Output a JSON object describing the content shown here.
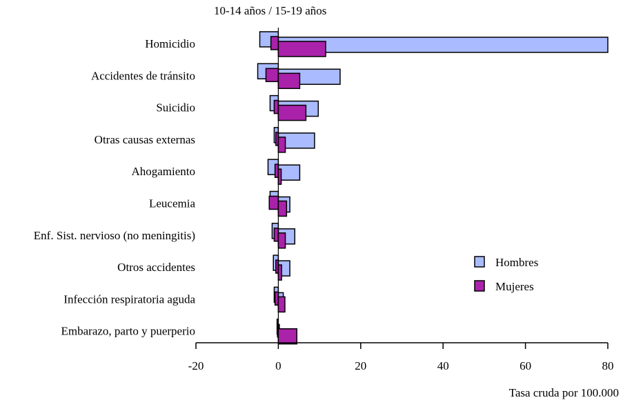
{
  "chart_data": {
    "type": "bar",
    "orientation": "horizontal",
    "title": "10-14 años / 15-19 años",
    "xlabel": "Tasa cruda por 100.000",
    "ylabel": "",
    "xlim": [
      -20,
      80
    ],
    "xticks": [
      -20,
      0,
      20,
      40,
      60,
      80
    ],
    "grid": false,
    "legend": "right",
    "note_negative_side": "10-14 años",
    "note_positive_side": "15-19 años",
    "categories": [
      "Homicidio",
      "Accidentes de tránsito",
      "Suicidio",
      "Otras causas externas",
      "Ahogamiento",
      "Leucemia",
      "Enf. Sist. nervioso (no meningitis)",
      "Otros accidentes",
      "Infección respiratoria aguda",
      "Embarazo, parto y puerperio"
    ],
    "series": [
      {
        "name": "Hombres",
        "color": "#aabbff",
        "values_10_14": [
          -4.5,
          -5,
          -2,
          -1,
          -2.5,
          -2,
          -1.5,
          -1.2,
          -1,
          -0.3
        ],
        "values_15_19": [
          80,
          15,
          9.7,
          8.8,
          5.2,
          2.8,
          4,
          2.8,
          1.2,
          0
        ]
      },
      {
        "name": "Mujeres",
        "color": "#aa22aa",
        "values_10_14": [
          -1.8,
          -3,
          -1,
          -0.6,
          -0.8,
          -2.2,
          -1,
          -0.6,
          -0.8,
          -0.2
        ],
        "values_15_19": [
          11.5,
          5.2,
          6.7,
          1.7,
          0.7,
          2,
          1.7,
          0.8,
          1.6,
          4.5
        ]
      }
    ]
  }
}
